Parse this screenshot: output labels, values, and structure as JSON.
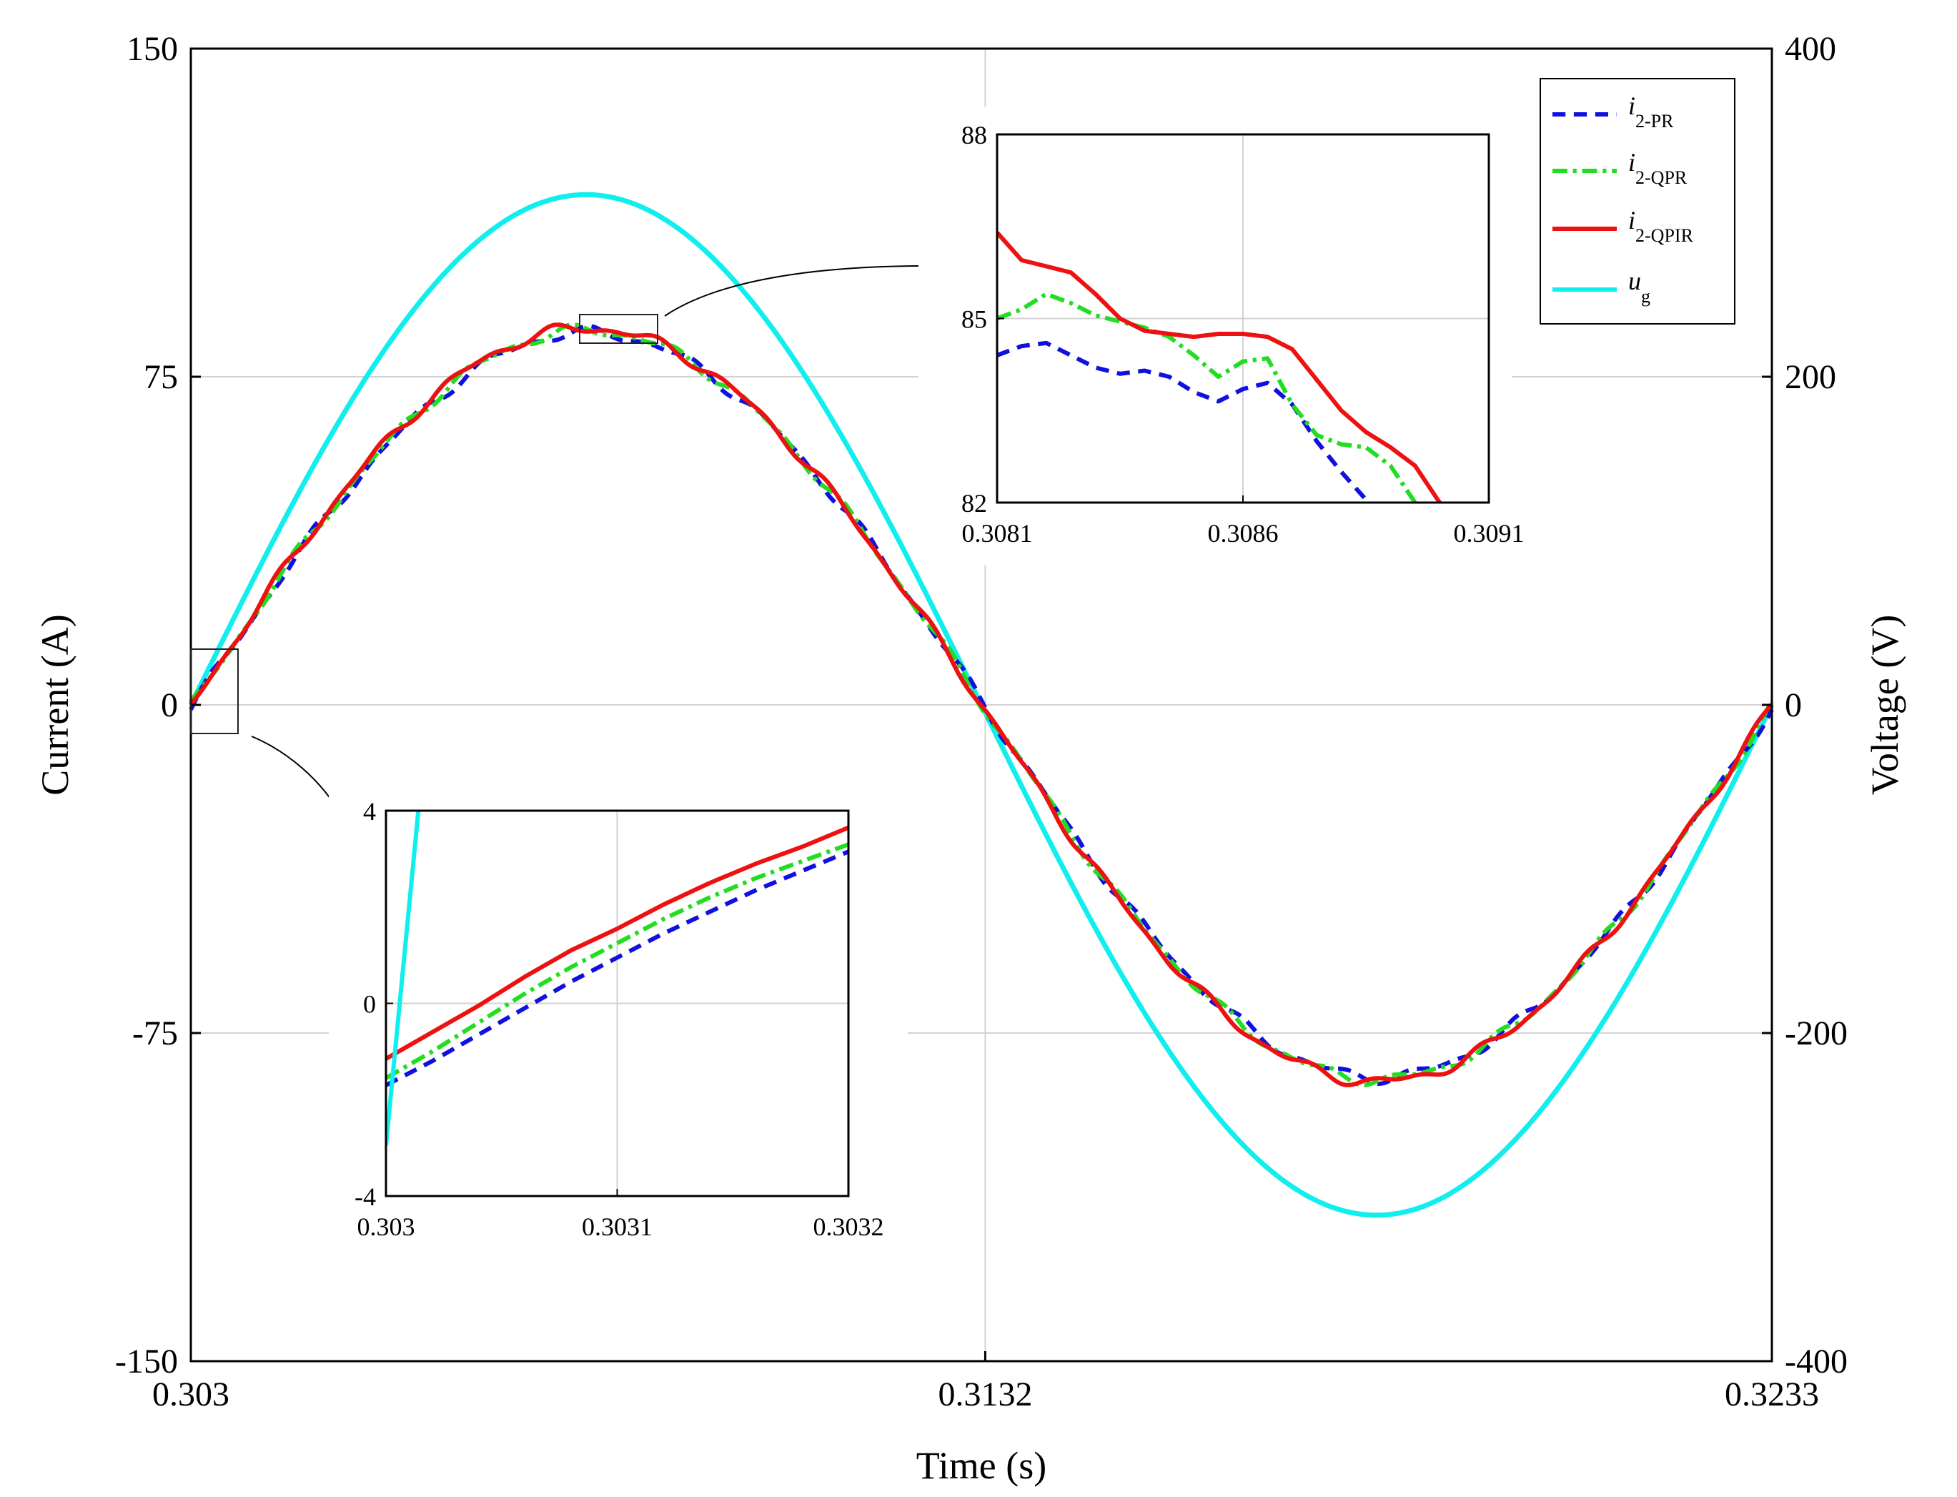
{
  "chart_data": [
    {
      "id": "main",
      "type": "line",
      "xlabel": "Time (s)",
      "ylabel_left": "Current (A)",
      "ylabel_right": "Voltage (V)",
      "xlim": [
        0.303,
        0.3233
      ],
      "ylim_left": [
        -150,
        150
      ],
      "ylim_right": [
        -400,
        400
      ],
      "xticks": [
        0.303,
        0.3132,
        0.3233
      ],
      "xtick_labels": [
        "0.303",
        "0.3132",
        "0.3233"
      ],
      "yticks_left": [
        -150,
        -75,
        0,
        75,
        150
      ],
      "ytick_labels_left": [
        "-150",
        "-75",
        "0",
        "75",
        "150"
      ],
      "yticks_right": [
        -400,
        -200,
        0,
        200,
        400
      ],
      "ytick_labels_right": [
        "-400",
        "-200",
        "0",
        "200",
        "400"
      ],
      "grid": true,
      "series": [
        {
          "name": "i2-PR",
          "axis": "left",
          "style": "dashed",
          "color": "#1010e0",
          "amplitude": 85.1,
          "phase_lag": 3e-05,
          "x0": 0.303,
          "period": 0.0203
        },
        {
          "name": "i2-QPR",
          "axis": "left",
          "style": "dashdot",
          "color": "#22dd22",
          "amplitude": 85.6,
          "phase_lag": 2e-05,
          "x0": 0.303,
          "period": 0.0203
        },
        {
          "name": "i2-QPIR",
          "axis": "left",
          "style": "solid",
          "color": "#ee1111",
          "amplitude": 86.1,
          "phase_lag": 1e-05,
          "x0": 0.303,
          "period": 0.0203
        },
        {
          "name": "ug",
          "axis": "right",
          "style": "solid",
          "color": "#11eeee",
          "amplitude": 311,
          "phase_lag": 0,
          "x0": 0.303,
          "period": 0.0203
        }
      ]
    },
    {
      "id": "inset_top",
      "type": "line",
      "xlim": [
        0.3081,
        0.3091
      ],
      "ylim": [
        82,
        88
      ],
      "xticks": [
        0.3081,
        0.3086,
        0.3091
      ],
      "xtick_labels": [
        "0.3081",
        "0.3086",
        "0.3091"
      ],
      "yticks": [
        82,
        85,
        88
      ],
      "ytick_labels": [
        "82",
        "85",
        "88"
      ],
      "zoom_window": {
        "x": [
          0.3081,
          0.3091
        ],
        "y": [
          82,
          88
        ]
      },
      "series": [
        {
          "name": "i2-PR",
          "style": "dashed",
          "color": "#1010e0",
          "x": [
            0.3081,
            0.30815,
            0.3082,
            0.30825,
            0.3083,
            0.30835,
            0.3084,
            0.30845,
            0.3085,
            0.30855,
            0.3086,
            0.30865,
            0.3087,
            0.30875,
            0.3088,
            0.30885
          ],
          "y": [
            84.4,
            84.55,
            84.6,
            84.4,
            84.2,
            84.1,
            84.15,
            84.05,
            83.8,
            83.65,
            83.85,
            83.95,
            83.6,
            83.0,
            82.5,
            82.05
          ]
        },
        {
          "name": "i2-QPR",
          "style": "dashdot",
          "color": "#22dd22",
          "x": [
            0.3081,
            0.30815,
            0.3082,
            0.30825,
            0.3083,
            0.30835,
            0.3084,
            0.30845,
            0.3085,
            0.30855,
            0.3086,
            0.30865,
            0.3087,
            0.30875,
            0.3088,
            0.30885,
            0.3089,
            0.30895
          ],
          "y": [
            85.0,
            85.15,
            85.4,
            85.25,
            85.05,
            84.95,
            84.85,
            84.7,
            84.4,
            84.05,
            84.3,
            84.35,
            83.6,
            83.1,
            82.95,
            82.9,
            82.6,
            82.0
          ]
        },
        {
          "name": "i2-QPIR",
          "style": "solid",
          "color": "#ee1111",
          "x": [
            0.3081,
            0.30815,
            0.3082,
            0.30825,
            0.3083,
            0.30835,
            0.3084,
            0.30845,
            0.3085,
            0.30855,
            0.3086,
            0.30865,
            0.3087,
            0.30875,
            0.3088,
            0.30885,
            0.3089,
            0.30895,
            0.309
          ],
          "y": [
            86.4,
            85.95,
            85.85,
            85.75,
            85.4,
            85.0,
            84.8,
            84.75,
            84.7,
            84.75,
            84.75,
            84.7,
            84.5,
            84.0,
            83.5,
            83.15,
            82.9,
            82.6,
            82.0
          ]
        }
      ]
    },
    {
      "id": "inset_bottom",
      "type": "line",
      "xlim": [
        0.303,
        0.3032
      ],
      "ylim": [
        -4,
        4
      ],
      "xticks": [
        0.303,
        0.3031,
        0.3032
      ],
      "xtick_labels": [
        "0.303",
        "0.3031",
        "0.3032"
      ],
      "yticks": [
        -4,
        0,
        4
      ],
      "ytick_labels": [
        "-4",
        "0",
        "4"
      ],
      "zoom_window": {
        "x": [
          0.303,
          0.30304
        ],
        "y": [
          -4,
          8
        ]
      },
      "series": [
        {
          "name": "i2-PR",
          "style": "dashed",
          "color": "#1010e0",
          "x": [
            0.303,
            0.30302,
            0.30304,
            0.30306,
            0.30308,
            0.3031,
            0.30312,
            0.30314,
            0.30316,
            0.30318,
            0.3032
          ],
          "y": [
            -1.7,
            -1.2,
            -0.65,
            -0.1,
            0.45,
            0.95,
            1.45,
            1.9,
            2.35,
            2.75,
            3.15
          ]
        },
        {
          "name": "i2-QPR",
          "style": "dashdot",
          "color": "#22dd22",
          "x": [
            0.303,
            0.30302,
            0.30304,
            0.30306,
            0.30308,
            0.3031,
            0.30312,
            0.30314,
            0.30316,
            0.30318,
            0.3032
          ],
          "y": [
            -1.55,
            -1.0,
            -0.4,
            0.2,
            0.75,
            1.25,
            1.75,
            2.2,
            2.6,
            2.95,
            3.3
          ]
        },
        {
          "name": "i2-QPIR",
          "style": "solid",
          "color": "#ee1111",
          "x": [
            0.303,
            0.30302,
            0.30304,
            0.30306,
            0.30308,
            0.3031,
            0.30312,
            0.30314,
            0.30316,
            0.30318,
            0.3032
          ],
          "y": [
            -1.15,
            -0.6,
            -0.05,
            0.55,
            1.1,
            1.55,
            2.05,
            2.5,
            2.9,
            3.25,
            3.65
          ]
        },
        {
          "name": "ug",
          "style": "solid",
          "color": "#11eeee",
          "x": [
            0.303,
            0.303014
          ],
          "y": [
            -2.95,
            4.0
          ]
        }
      ]
    }
  ],
  "legend": {
    "placement": "top-right",
    "items": [
      {
        "italic": "i",
        "sub": "2-PR",
        "color": "#1010e0",
        "style": "dashed"
      },
      {
        "italic": "i",
        "sub": "2-QPR",
        "color": "#22dd22",
        "style": "dashdot"
      },
      {
        "italic": "i",
        "sub": "2-QPIR",
        "color": "#ee1111",
        "style": "solid"
      },
      {
        "italic": "u",
        "sub": "g",
        "color": "#11eeee",
        "style": "solid"
      }
    ]
  }
}
